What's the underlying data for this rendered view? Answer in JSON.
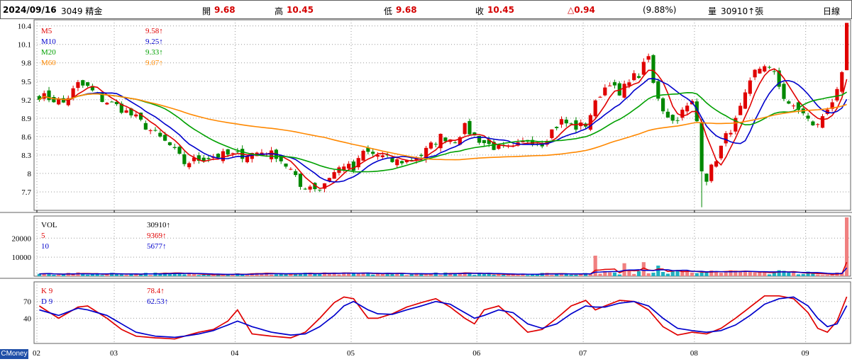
{
  "header": {
    "date": "2024/09/16",
    "stock": "3049 精金",
    "open_label": "開",
    "open_value": "9.68",
    "high_label": "高",
    "high_value": "10.45",
    "low_label": "低",
    "low_value": "9.68",
    "close_label": "收",
    "close_value": "10.45",
    "change": "△0.94",
    "change_pct": "(9.88%)",
    "volume_label": "量",
    "volume_value": "30910↑張",
    "period": "日線"
  },
  "price_panel": {
    "legend": [
      {
        "name": "M5",
        "value": "9.58↑",
        "color": "#e00000"
      },
      {
        "name": "M10",
        "value": "9.25↑",
        "color": "#0000cc"
      },
      {
        "name": "M20",
        "value": "9.33↑",
        "color": "#00a000"
      },
      {
        "name": "M60",
        "value": "9.07↑",
        "color": "#ff8800"
      }
    ],
    "y_ticks": [
      "10.4",
      "10.1",
      "9.8",
      "9.5",
      "9.2",
      "8.9",
      "8.6",
      "8.3",
      "8",
      "7.7"
    ]
  },
  "volume_panel": {
    "legend": [
      {
        "name": "VOL",
        "value": "30910↑",
        "color": "#000000"
      },
      {
        "name": "5",
        "value": "9369↑",
        "color": "#e00000"
      },
      {
        "name": "10",
        "value": "5677↑",
        "color": "#0000cc"
      }
    ],
    "y_ticks": [
      "20000",
      "10000"
    ]
  },
  "kd_panel": {
    "legend": [
      {
        "name": "K 9",
        "value": "78.4↑",
        "color": "#e00000"
      },
      {
        "name": "D 9",
        "value": "62.53↑",
        "color": "#0000cc"
      }
    ],
    "y_ticks": [
      "70",
      "40"
    ]
  },
  "x_axis": {
    "months": [
      "02",
      "03",
      "04",
      "05",
      "06",
      "07",
      "08",
      "09"
    ]
  },
  "brand": "CMoney",
  "colors": {
    "up": "#e00000",
    "down": "#008800",
    "vol_up": "#f08080",
    "vol_down": "#20b0c0",
    "grid": "#9a9a9a"
  },
  "chart_data": {
    "type": "candlestick",
    "y_unit": "price",
    "ylim": [
      7.4,
      10.5
    ],
    "months": [
      {
        "label": "02",
        "index": 0
      },
      {
        "label": "03",
        "index": 16
      },
      {
        "label": "04",
        "index": 41
      },
      {
        "label": "05",
        "index": 65
      },
      {
        "label": "06",
        "index": 91
      },
      {
        "label": "07",
        "index": 113
      },
      {
        "label": "08",
        "index": 136
      },
      {
        "label": "09",
        "index": 159
      }
    ],
    "anchors": [
      [
        0,
        9.27
      ],
      [
        3,
        9.2
      ],
      [
        5,
        9.15
      ],
      [
        7,
        9.35
      ],
      [
        8,
        9.45
      ],
      [
        10,
        9.4
      ],
      [
        13,
        9.2
      ],
      [
        16,
        9.1
      ],
      [
        20,
        8.9
      ],
      [
        23,
        8.7
      ],
      [
        27,
        8.45
      ],
      [
        30,
        8.17
      ],
      [
        34,
        8.25
      ],
      [
        38,
        8.3
      ],
      [
        42,
        8.3
      ],
      [
        46,
        8.35
      ],
      [
        49,
        8.3
      ],
      [
        52,
        8.05
      ],
      [
        54,
        7.78
      ],
      [
        56,
        7.8
      ],
      [
        58,
        7.75
      ],
      [
        60,
        7.95
      ],
      [
        63,
        8.15
      ],
      [
        65,
        8.05
      ],
      [
        67,
        8.35
      ],
      [
        70,
        8.3
      ],
      [
        73,
        8.2
      ],
      [
        76,
        8.2
      ],
      [
        79,
        8.3
      ],
      [
        81,
        8.45
      ],
      [
        83,
        8.6
      ],
      [
        86,
        8.55
      ],
      [
        88,
        8.75
      ],
      [
        90,
        8.6
      ],
      [
        92,
        8.5
      ],
      [
        95,
        8.4
      ],
      [
        98,
        8.4
      ],
      [
        101,
        8.55
      ],
      [
        104,
        8.5
      ],
      [
        106,
        8.7
      ],
      [
        108,
        8.85
      ],
      [
        111,
        8.75
      ],
      [
        113,
        8.8
      ],
      [
        116,
        9.3
      ],
      [
        118,
        9.5
      ],
      [
        120,
        9.25
      ],
      [
        122,
        9.55
      ],
      [
        124,
        9.6
      ],
      [
        126,
        9.9
      ],
      [
        127,
        9.45
      ],
      [
        129,
        9.05
      ],
      [
        131,
        8.85
      ],
      [
        133,
        9.0
      ],
      [
        135,
        9.15
      ],
      [
        136,
        8.85
      ],
      [
        137,
        8.1
      ],
      [
        138,
        7.92
      ],
      [
        140,
        8.25
      ],
      [
        142,
        8.6
      ],
      [
        144,
        8.85
      ],
      [
        146,
        9.25
      ],
      [
        148,
        9.65
      ],
      [
        150,
        9.78
      ],
      [
        152,
        9.6
      ],
      [
        154,
        9.25
      ],
      [
        156,
        9.05
      ],
      [
        158,
        9.0
      ],
      [
        160,
        8.75
      ],
      [
        162,
        8.9
      ],
      [
        164,
        9.2
      ],
      [
        165,
        9.4
      ],
      [
        166,
        9.58
      ],
      [
        167,
        10.45
      ]
    ],
    "volume_scale": 30910,
    "volume_ticks": [
      20000,
      10000
    ],
    "kd": {
      "k_last": 78.4,
      "d_last": 62.53,
      "k_anchors": [
        [
          0,
          62
        ],
        [
          4,
          40
        ],
        [
          8,
          60
        ],
        [
          10,
          62
        ],
        [
          14,
          40
        ],
        [
          17,
          20
        ],
        [
          20,
          8
        ],
        [
          24,
          5
        ],
        [
          28,
          3
        ],
        [
          30,
          8
        ],
        [
          33,
          15
        ],
        [
          36,
          20
        ],
        [
          39,
          35
        ],
        [
          41,
          55
        ],
        [
          44,
          12
        ],
        [
          48,
          8
        ],
        [
          52,
          5
        ],
        [
          55,
          15
        ],
        [
          58,
          40
        ],
        [
          61,
          68
        ],
        [
          63,
          78
        ],
        [
          65,
          75
        ],
        [
          68,
          40
        ],
        [
          70,
          40
        ],
        [
          73,
          48
        ],
        [
          76,
          60
        ],
        [
          79,
          68
        ],
        [
          82,
          75
        ],
        [
          85,
          60
        ],
        [
          88,
          40
        ],
        [
          90,
          30
        ],
        [
          92,
          55
        ],
        [
          95,
          62
        ],
        [
          98,
          40
        ],
        [
          101,
          15
        ],
        [
          104,
          20
        ],
        [
          107,
          40
        ],
        [
          110,
          62
        ],
        [
          113,
          72
        ],
        [
          115,
          55
        ],
        [
          117,
          62
        ],
        [
          120,
          72
        ],
        [
          123,
          70
        ],
        [
          126,
          55
        ],
        [
          129,
          25
        ],
        [
          132,
          10
        ],
        [
          135,
          15
        ],
        [
          138,
          12
        ],
        [
          141,
          22
        ],
        [
          144,
          40
        ],
        [
          147,
          60
        ],
        [
          150,
          80
        ],
        [
          153,
          80
        ],
        [
          156,
          75
        ],
        [
          159,
          50
        ],
        [
          161,
          22
        ],
        [
          163,
          15
        ],
        [
          165,
          35
        ],
        [
          167,
          78.4
        ]
      ],
      "d_anchors": [
        [
          0,
          55
        ],
        [
          4,
          45
        ],
        [
          8,
          58
        ],
        [
          10,
          55
        ],
        [
          14,
          45
        ],
        [
          17,
          30
        ],
        [
          20,
          15
        ],
        [
          24,
          8
        ],
        [
          28,
          6
        ],
        [
          30,
          8
        ],
        [
          33,
          12
        ],
        [
          36,
          18
        ],
        [
          39,
          28
        ],
        [
          41,
          35
        ],
        [
          44,
          25
        ],
        [
          48,
          15
        ],
        [
          52,
          10
        ],
        [
          55,
          12
        ],
        [
          58,
          25
        ],
        [
          61,
          45
        ],
        [
          63,
          62
        ],
        [
          65,
          70
        ],
        [
          68,
          55
        ],
        [
          70,
          48
        ],
        [
          73,
          47
        ],
        [
          76,
          55
        ],
        [
          79,
          62
        ],
        [
          82,
          70
        ],
        [
          85,
          65
        ],
        [
          88,
          50
        ],
        [
          90,
          40
        ],
        [
          92,
          45
        ],
        [
          95,
          55
        ],
        [
          98,
          50
        ],
        [
          101,
          30
        ],
        [
          104,
          22
        ],
        [
          107,
          30
        ],
        [
          110,
          48
        ],
        [
          113,
          62
        ],
        [
          115,
          60
        ],
        [
          117,
          60
        ],
        [
          120,
          67
        ],
        [
          123,
          70
        ],
        [
          126,
          62
        ],
        [
          129,
          40
        ],
        [
          132,
          22
        ],
        [
          135,
          18
        ],
        [
          138,
          15
        ],
        [
          141,
          18
        ],
        [
          144,
          28
        ],
        [
          147,
          45
        ],
        [
          150,
          65
        ],
        [
          153,
          75
        ],
        [
          156,
          78
        ],
        [
          159,
          62
        ],
        [
          161,
          40
        ],
        [
          163,
          25
        ],
        [
          165,
          30
        ],
        [
          167,
          62.53
        ]
      ]
    }
  }
}
